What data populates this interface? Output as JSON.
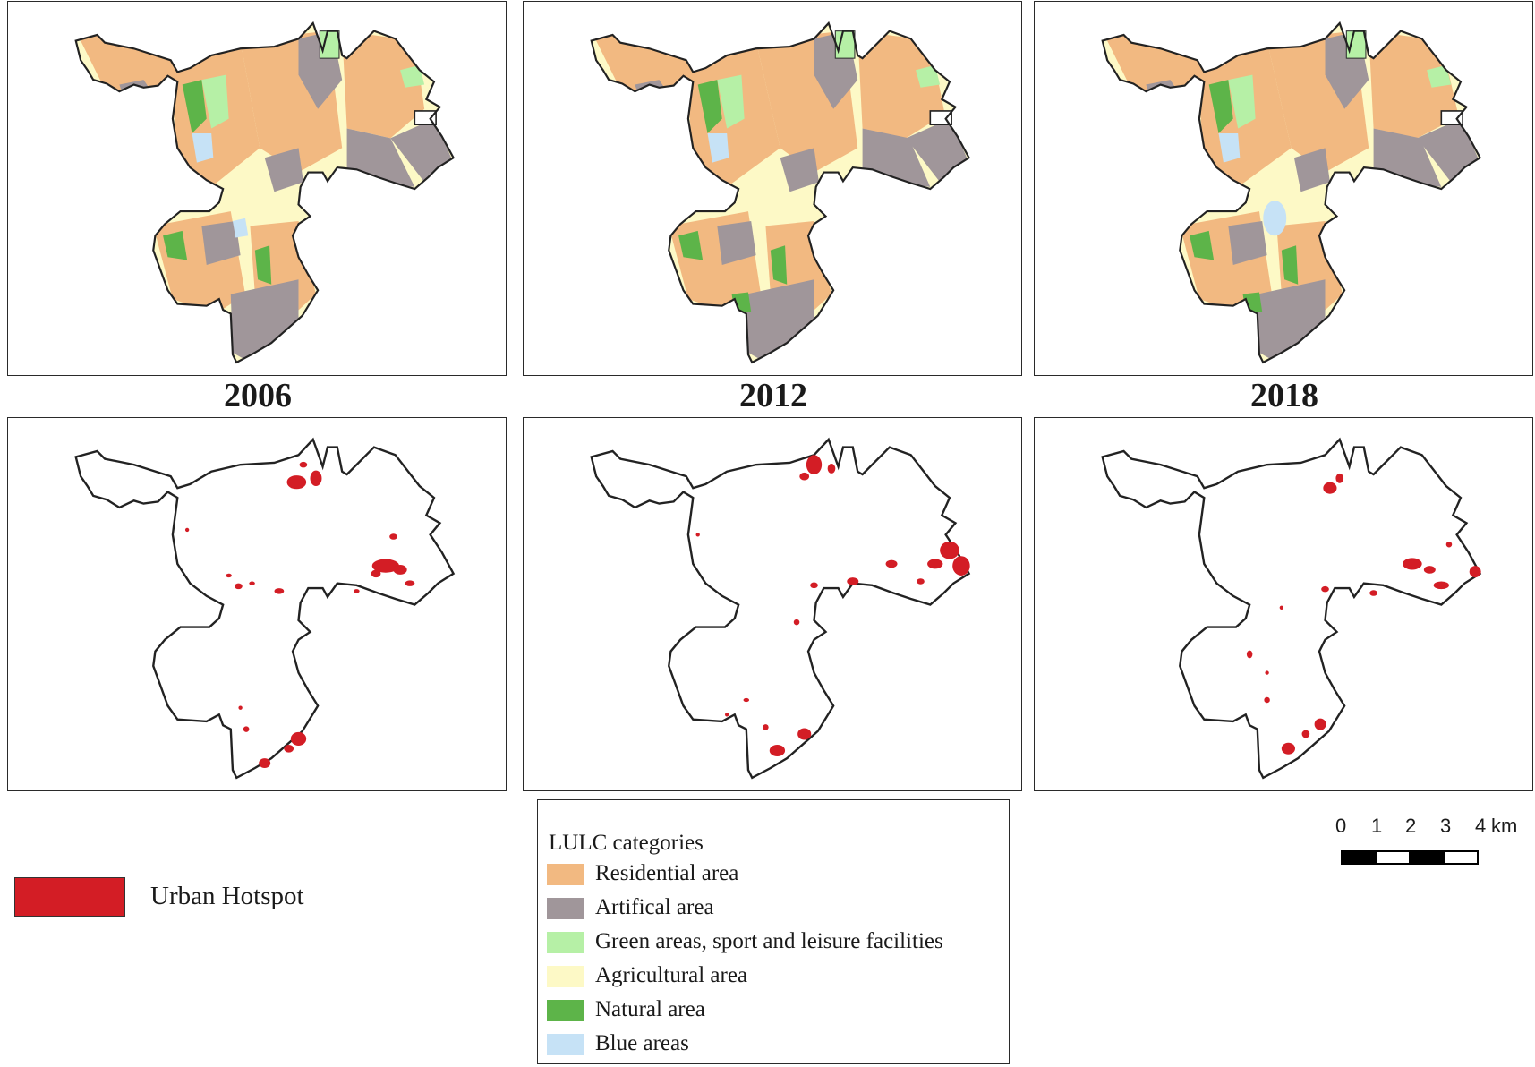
{
  "maps": {
    "years": [
      "2006",
      "2012",
      "2018"
    ]
  },
  "legend": {
    "title": "LULC categories",
    "items": [
      {
        "label": "Residential area",
        "color": "#f2b981"
      },
      {
        "label": "Artifical area",
        "color": "#a0969a"
      },
      {
        "label": "Green areas,  sport and leisure facilities",
        "color": "#b6f0a6"
      },
      {
        "label": "Agricultural area",
        "color": "#fdf9c6"
      },
      {
        "label": "Natural area",
        "color": "#5db449"
      },
      {
        "label": "Blue areas",
        "color": "#c6e2f6"
      }
    ]
  },
  "hotspot_legend": {
    "label": "Urban Hotspot",
    "color": "#d31d25"
  },
  "scale_bar": {
    "ticks": [
      "0",
      "1",
      "2",
      "3",
      "4"
    ],
    "unit": "km"
  }
}
